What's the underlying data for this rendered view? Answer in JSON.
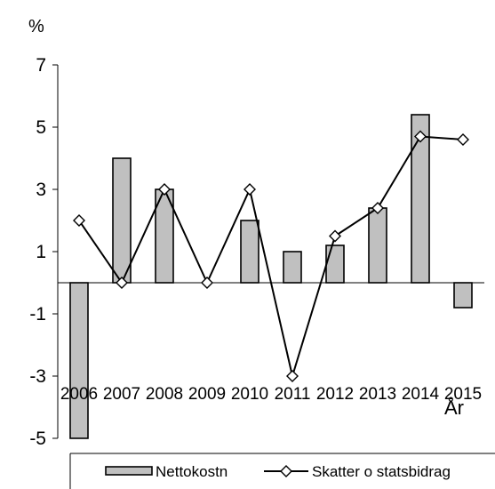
{
  "chart_data": {
    "type": "bar",
    "title": "",
    "ylabel": "%",
    "xlabel": "År",
    "ylim": [
      -5,
      7
    ],
    "yticks": [
      7,
      5,
      3,
      1,
      -1,
      -3,
      -5
    ],
    "grid": false,
    "legend_position": "bottom",
    "categories": [
      "2006",
      "2007",
      "2008",
      "2009",
      "2010",
      "2011",
      "2012",
      "2013",
      "2014",
      "2015"
    ],
    "series": [
      {
        "name": "Nettokostn",
        "kind": "bar",
        "color": "#c0c0c0",
        "values": [
          -5.0,
          4.0,
          3.0,
          0.0,
          2.0,
          1.0,
          1.2,
          2.4,
          5.4,
          -0.8
        ]
      },
      {
        "name": "Skatter o statsbidrag",
        "kind": "line",
        "color": "#000000",
        "marker": "diamond",
        "values": [
          2.0,
          0.0,
          3.0,
          0.0,
          3.0,
          -3.0,
          1.5,
          2.4,
          4.7,
          4.6
        ]
      }
    ]
  }
}
